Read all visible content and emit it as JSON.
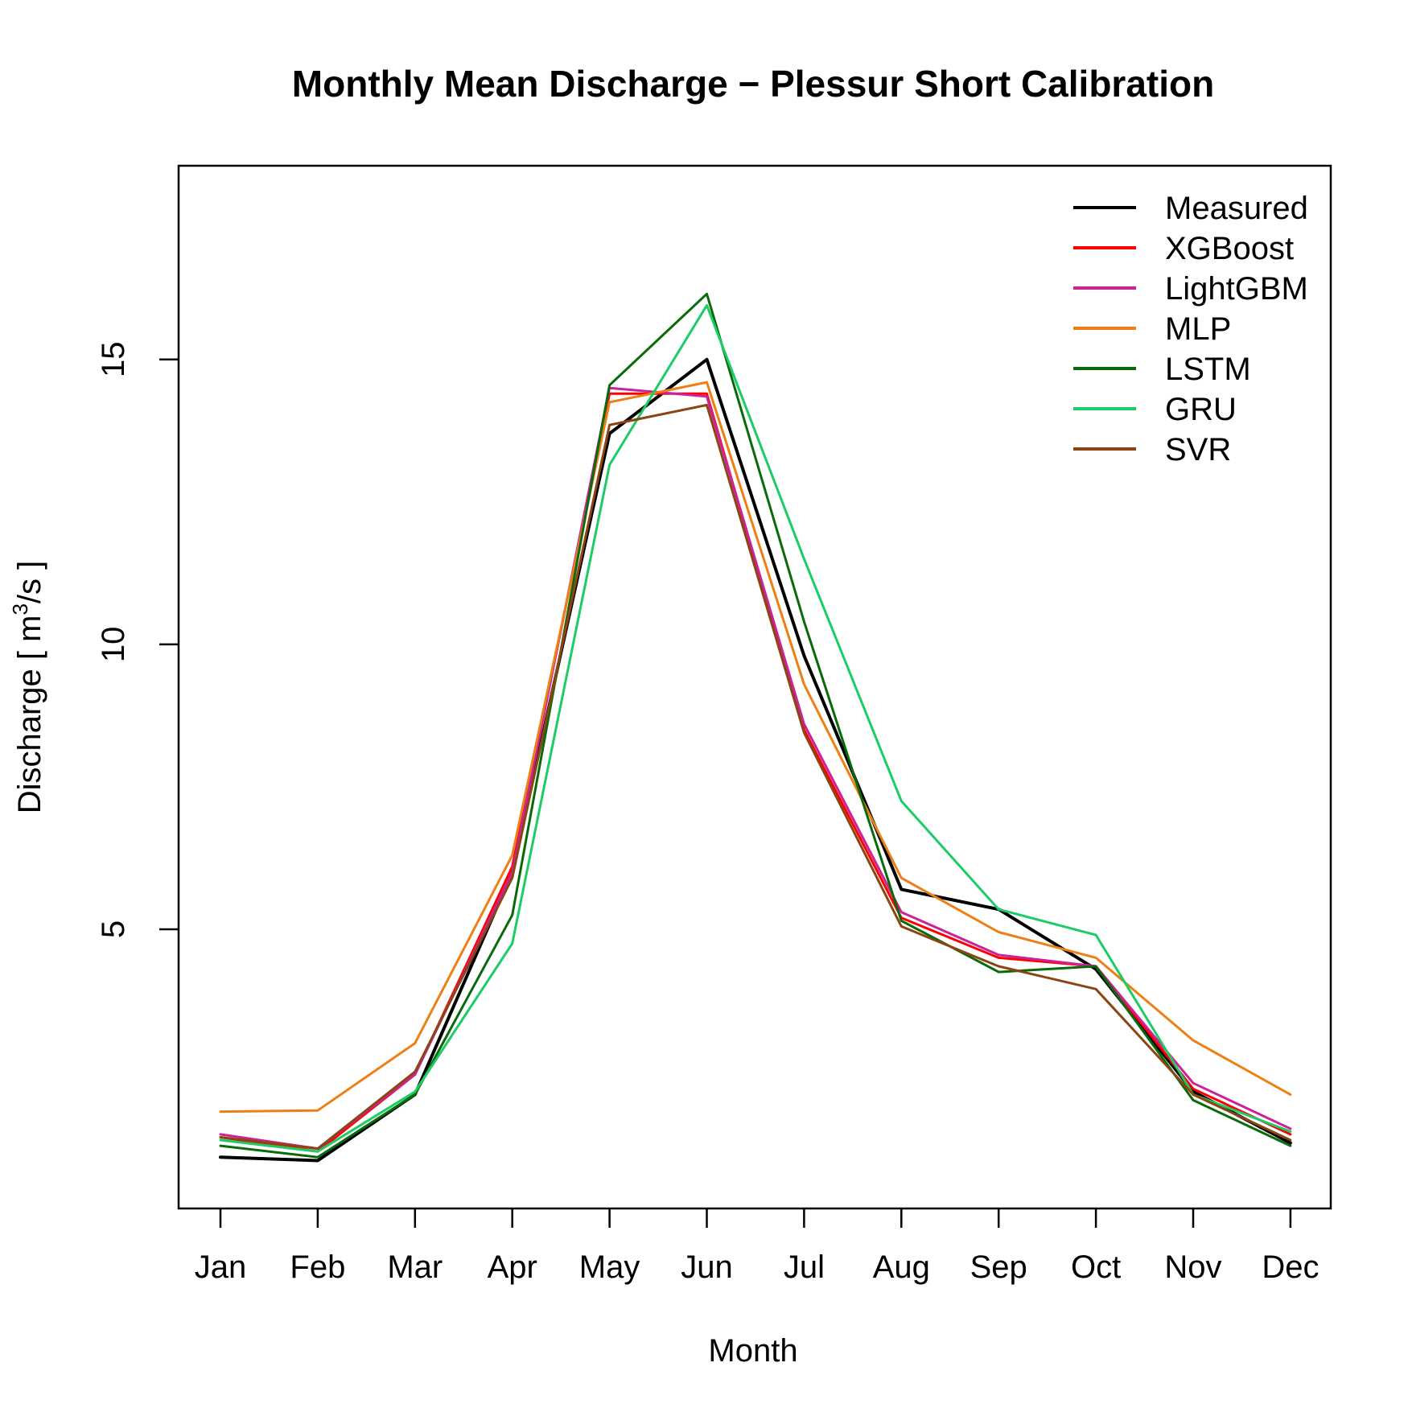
{
  "chart_data": {
    "type": "line",
    "title": "Monthly Mean Discharge − Plessur Short Calibration",
    "xlabel": "Month",
    "ylabel": {
      "prefix": "Discharge [ m",
      "sup": "3",
      "suffix": "/s ]"
    },
    "categories": [
      "Jan",
      "Feb",
      "Mar",
      "Apr",
      "May",
      "Jun",
      "Jul",
      "Aug",
      "Sep",
      "Oct",
      "Nov",
      "Dec"
    ],
    "yticks": [
      5,
      10,
      15
    ],
    "ylim": [
      0.1,
      18.4
    ],
    "grid": false,
    "legend_position": "top-right",
    "series": [
      {
        "name": "Measured",
        "color": "#000000",
        "width": 4,
        "values": [
          1.0,
          0.94,
          2.1,
          6.0,
          13.7,
          15.0,
          9.8,
          5.7,
          5.35,
          4.3,
          2.15,
          1.25
        ]
      },
      {
        "name": "XGBoost",
        "color": "#ff0000",
        "width": 3,
        "values": [
          1.35,
          1.1,
          2.45,
          6.1,
          14.4,
          14.4,
          8.5,
          5.2,
          4.5,
          4.35,
          2.2,
          1.4
        ]
      },
      {
        "name": "LightGBM",
        "color": "#cc2299",
        "width": 3,
        "values": [
          1.4,
          1.15,
          2.45,
          6.0,
          14.5,
          14.35,
          8.6,
          5.3,
          4.55,
          4.35,
          2.3,
          1.5
        ]
      },
      {
        "name": "MLP",
        "color": "#ee7f15",
        "width": 3,
        "values": [
          1.8,
          1.82,
          3.0,
          6.3,
          14.25,
          14.6,
          9.3,
          5.9,
          4.95,
          4.5,
          3.05,
          2.1
        ]
      },
      {
        "name": "LSTM",
        "color": "#0a6a0a",
        "width": 3,
        "values": [
          1.2,
          1.0,
          2.1,
          5.25,
          14.55,
          16.15,
          10.4,
          5.15,
          4.25,
          4.35,
          2.0,
          1.2
        ]
      },
      {
        "name": "GRU",
        "color": "#1ccc66",
        "width": 3,
        "values": [
          1.3,
          1.1,
          2.15,
          4.75,
          13.15,
          15.95,
          11.5,
          7.25,
          5.35,
          4.9,
          2.1,
          1.45
        ]
      },
      {
        "name": "SVR",
        "color": "#8b4513",
        "width": 3,
        "values": [
          1.35,
          1.15,
          2.5,
          5.9,
          13.85,
          14.2,
          8.45,
          5.05,
          4.35,
          3.95,
          2.1,
          1.3
        ]
      }
    ]
  }
}
